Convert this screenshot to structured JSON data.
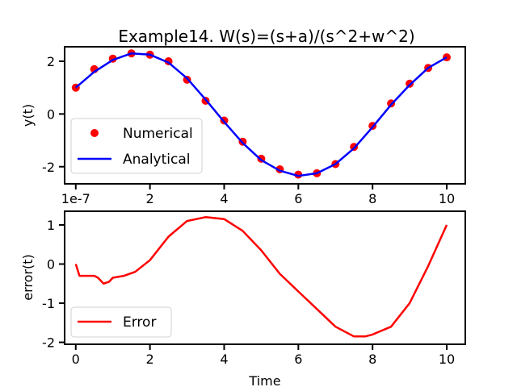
{
  "chart_data": [
    {
      "type": "line",
      "title": "Example14. W(s)=(s+a)/(s^2+w^2)",
      "ylabel": "y(t)",
      "xlabel": "",
      "x_offset_label": "1e-7",
      "xlim": [
        -0.3,
        10.5
      ],
      "ylim": [
        -2.65,
        2.55
      ],
      "xticks": [
        0,
        2,
        4,
        6,
        8,
        10
      ],
      "xtick_labels": [
        "1e-7",
        "2",
        "4",
        "6",
        "8",
        "10"
      ],
      "yticks": [
        -2,
        0,
        2
      ],
      "ytick_labels": [
        "-2",
        "0",
        "2"
      ],
      "legend_placement": "lower-left",
      "series": [
        {
          "name": "Numerical",
          "style": "scatter",
          "color": "#ff0000",
          "x": [
            0,
            0.5,
            1,
            1.5,
            2,
            2.5,
            3,
            3.5,
            4,
            4.5,
            5,
            5.5,
            6,
            6.5,
            7,
            7.5,
            8,
            8.5,
            9,
            9.5,
            10
          ],
          "y": [
            1.0,
            1.7,
            2.1,
            2.3,
            2.25,
            2.0,
            1.3,
            0.5,
            -0.25,
            -1.05,
            -1.7,
            -2.1,
            -2.3,
            -2.25,
            -1.9,
            -1.25,
            -0.45,
            0.4,
            1.15,
            1.75,
            2.15
          ]
        },
        {
          "name": "Analytical",
          "style": "line",
          "color": "#0000ff",
          "x": [
            0,
            0.5,
            1,
            1.5,
            2,
            2.5,
            3,
            3.5,
            4,
            4.5,
            5,
            5.5,
            6,
            6.5,
            7,
            7.5,
            8,
            8.5,
            9,
            9.5,
            10
          ],
          "y": [
            1.0,
            1.6,
            2.05,
            2.3,
            2.25,
            1.95,
            1.35,
            0.55,
            -0.3,
            -1.1,
            -1.75,
            -2.15,
            -2.35,
            -2.25,
            -1.9,
            -1.3,
            -0.5,
            0.35,
            1.1,
            1.75,
            2.15
          ]
        }
      ]
    },
    {
      "type": "line",
      "title": "",
      "ylabel": "error(t)",
      "xlabel": "Time",
      "xlim": [
        -0.3,
        10.5
      ],
      "ylim": [
        -2.05,
        1.35
      ],
      "xticks": [
        0,
        2,
        4,
        6,
        8,
        10
      ],
      "xtick_labels": [
        "0",
        "2",
        "4",
        "6",
        "8",
        "10"
      ],
      "yticks": [
        -2,
        -1,
        0,
        1
      ],
      "ytick_labels": [
        "-2",
        "-1",
        "0",
        "1"
      ],
      "legend_placement": "lower-left",
      "series": [
        {
          "name": "Error",
          "style": "line",
          "color": "#ff0000",
          "x": [
            0,
            0.1,
            0.3,
            0.5,
            0.6,
            0.75,
            0.9,
            1.0,
            1.3,
            1.6,
            2.0,
            2.5,
            3.0,
            3.5,
            4.0,
            4.5,
            5.0,
            5.5,
            6.0,
            6.5,
            7.0,
            7.5,
            7.8,
            8.0,
            8.5,
            9.0,
            9.5,
            10.0
          ],
          "y": [
            0.0,
            -0.3,
            -0.3,
            -0.3,
            -0.35,
            -0.5,
            -0.45,
            -0.35,
            -0.3,
            -0.2,
            0.1,
            0.7,
            1.1,
            1.2,
            1.15,
            0.85,
            0.35,
            -0.25,
            -0.7,
            -1.15,
            -1.6,
            -1.85,
            -1.85,
            -1.8,
            -1.6,
            -1.0,
            -0.05,
            1.0
          ]
        }
      ]
    }
  ]
}
